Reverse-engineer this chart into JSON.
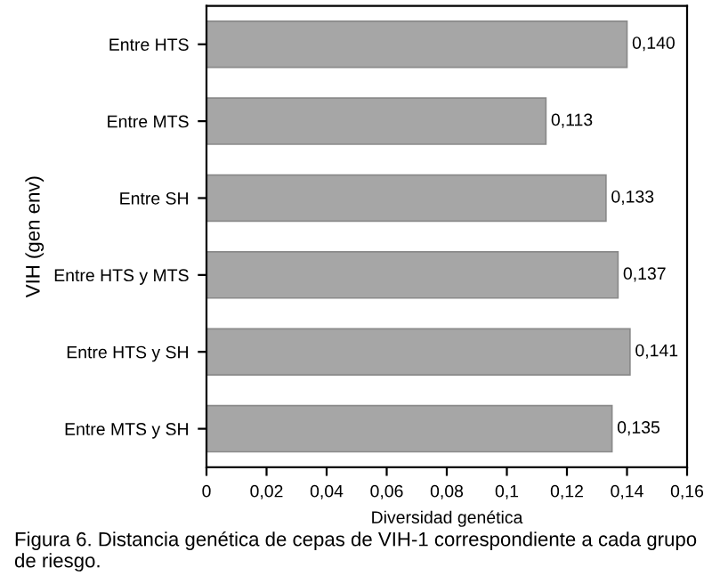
{
  "chart_data": {
    "type": "bar",
    "orientation": "horizontal",
    "categories": [
      "Entre HTS",
      "Entre MTS",
      "Entre SH",
      "Entre HTS y MTS",
      "Entre HTS y SH",
      "Entre MTS y SH"
    ],
    "values": [
      0.14,
      0.113,
      0.133,
      0.137,
      0.141,
      0.135
    ],
    "value_labels": [
      "0,140",
      "0,113",
      "0,133",
      "0,137",
      "0,141",
      "0,135"
    ],
    "color": "#a6a6a6",
    "xlim": [
      0,
      0.16
    ],
    "xticks": [
      0,
      {
        "value": 0.02,
        "label": "0,02"
      },
      {
        "value": 0.04,
        "label": "0,04"
      },
      {
        "value": 0.06,
        "label": "0,06"
      },
      {
        "value": 0.08,
        "label": "0,08"
      },
      {
        "value": 0.1,
        "label": "0,1"
      },
      {
        "value": 0.12,
        "label": "0,12"
      },
      {
        "value": 0.14,
        "label": "0,14"
      },
      {
        "value": 0.16,
        "label": "0,16"
      }
    ],
    "xlabel": "Diversidad genética",
    "ylabel": "VIH (gen env)",
    "grid": false,
    "legend": false,
    "annotations": [
      "Figura 6. Distancia genética de cepas de VIH-1 correspondiente a cada grupo de riesgo."
    ]
  }
}
